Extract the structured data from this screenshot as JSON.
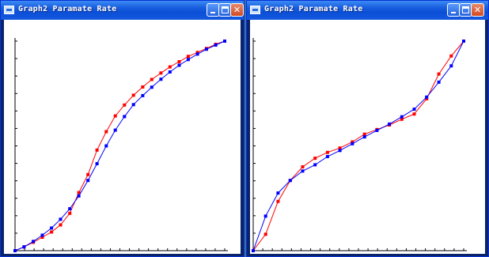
{
  "windows": [
    {
      "title": "Graph2 Paramate Rate",
      "icons": {
        "app": "app-icon",
        "minimize": "minimize-icon",
        "maximize": "maximize-icon",
        "close": "close-icon"
      },
      "chart_data": {
        "type": "line",
        "xlim": [
          0,
          1
        ],
        "ylim": [
          0,
          1
        ],
        "x_ticks": 22,
        "y_ticks": 12,
        "grid": false,
        "series": [
          {
            "color": "#ff0000",
            "x": [
              0,
              0.043,
              0.087,
              0.13,
              0.174,
              0.217,
              0.261,
              0.304,
              0.348,
              0.391,
              0.435,
              0.478,
              0.522,
              0.565,
              0.609,
              0.652,
              0.696,
              0.739,
              0.783,
              0.826,
              0.87,
              0.913,
              0.957,
              1
            ],
            "y": [
              0,
              0.018,
              0.04,
              0.064,
              0.089,
              0.123,
              0.178,
              0.277,
              0.363,
              0.48,
              0.568,
              0.643,
              0.695,
              0.742,
              0.781,
              0.817,
              0.848,
              0.877,
              0.902,
              0.927,
              0.946,
              0.965,
              0.985,
              1
            ]
          },
          {
            "color": "#0000ff",
            "x": [
              0,
              0.043,
              0.087,
              0.13,
              0.174,
              0.217,
              0.261,
              0.304,
              0.348,
              0.391,
              0.435,
              0.478,
              0.522,
              0.565,
              0.609,
              0.652,
              0.696,
              0.739,
              0.783,
              0.826,
              0.87,
              0.913,
              0.957,
              1
            ],
            "y": [
              0,
              0.018,
              0.044,
              0.074,
              0.108,
              0.15,
              0.2,
              0.261,
              0.335,
              0.415,
              0.5,
              0.575,
              0.64,
              0.697,
              0.74,
              0.78,
              0.818,
              0.853,
              0.885,
              0.912,
              0.938,
              0.961,
              0.981,
              1
            ]
          }
        ]
      }
    },
    {
      "title": "Graph2 Paramate Rate",
      "icons": {
        "app": "app-icon",
        "minimize": "minimize-icon",
        "maximize": "maximize-icon",
        "close": "close-icon"
      },
      "chart_data": {
        "type": "line",
        "xlim": [
          0,
          1
        ],
        "ylim": [
          0,
          1
        ],
        "x_ticks": 22,
        "y_ticks": 12,
        "grid": false,
        "series": [
          {
            "color": "#ff0000",
            "x": [
              0,
              0.059,
              0.118,
              0.176,
              0.235,
              0.294,
              0.353,
              0.412,
              0.471,
              0.529,
              0.588,
              0.647,
              0.706,
              0.765,
              0.824,
              0.882,
              0.941,
              1
            ],
            "y": [
              0,
              0.078,
              0.235,
              0.335,
              0.4,
              0.441,
              0.469,
              0.49,
              0.519,
              0.556,
              0.578,
              0.6,
              0.627,
              0.652,
              0.725,
              0.843,
              0.929,
              1
            ]
          },
          {
            "color": "#0000ff",
            "x": [
              0,
              0.059,
              0.118,
              0.176,
              0.235,
              0.294,
              0.353,
              0.412,
              0.471,
              0.529,
              0.588,
              0.647,
              0.706,
              0.765,
              0.824,
              0.882,
              0.941,
              1
            ],
            "y": [
              0,
              0.165,
              0.275,
              0.335,
              0.38,
              0.41,
              0.449,
              0.478,
              0.51,
              0.543,
              0.574,
              0.604,
              0.639,
              0.675,
              0.733,
              0.804,
              0.882,
              1
            ]
          }
        ]
      }
    }
  ]
}
